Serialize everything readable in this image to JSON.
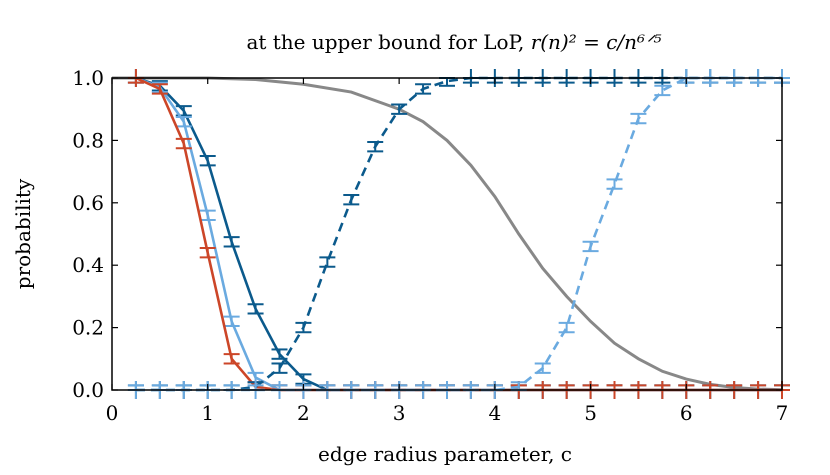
{
  "chart_data": {
    "type": "line",
    "title_prefix": "at the upper bound for LoP, ",
    "title_math": "r(n)² = c/n⁶ᐟ⁵",
    "xlabel": "edge radius parameter, c",
    "ylabel": "probability",
    "xlim": [
      0,
      7
    ],
    "ylim": [
      0,
      1
    ],
    "xticks": [
      "0",
      "1",
      "2",
      "3",
      "4",
      "5",
      "6",
      "7"
    ],
    "yticks": [
      "0.0",
      "0.2",
      "0.4",
      "0.6",
      "0.8",
      "1.0"
    ],
    "grid": false,
    "legend": "none",
    "x": [
      0.25,
      0.5,
      0.75,
      1.0,
      1.25,
      1.5,
      1.75,
      2.0,
      2.25,
      2.5,
      2.75,
      3.0,
      3.25,
      3.5,
      3.75,
      4.0,
      4.25,
      4.5,
      4.75,
      5.0,
      5.25,
      5.5,
      5.75,
      6.0,
      6.25,
      6.5,
      6.75,
      7.0
    ],
    "series": [
      {
        "color": "#888888",
        "style": "solid",
        "errorbars": false,
        "kind": "curve",
        "x": [
          0,
          0.5,
          1.0,
          1.5,
          2.0,
          2.5,
          3.0,
          3.25,
          3.5,
          3.75,
          4.0,
          4.25,
          4.5,
          4.75,
          5.0,
          5.25,
          5.5,
          5.75,
          6.0,
          6.25,
          6.5,
          6.75,
          7.0
        ],
        "values": [
          1.0,
          1.0,
          1.0,
          0.995,
          0.98,
          0.955,
          0.9,
          0.86,
          0.8,
          0.72,
          0.62,
          0.5,
          0.39,
          0.3,
          0.22,
          0.15,
          0.1,
          0.06,
          0.035,
          0.018,
          0.008,
          0.003,
          0.001
        ]
      },
      {
        "color": "#0b5a8c",
        "style": "solid",
        "errorbars": true,
        "values": [
          1.0,
          0.975,
          0.895,
          0.735,
          0.475,
          0.26,
          0.115,
          0.035,
          0.0,
          0.0,
          0.0,
          0.0,
          0.0,
          0.0,
          0.0,
          0.0,
          0.0,
          0.0,
          0.0,
          0.0,
          0.0,
          0.0,
          0.0,
          0.0,
          0.0,
          0.0,
          0.0,
          0.0
        ]
      },
      {
        "color": "#6aaae0",
        "style": "solid",
        "errorbars": true,
        "values": [
          1.0,
          0.97,
          0.86,
          0.56,
          0.22,
          0.04,
          0.0,
          0.0,
          0.0,
          0.0,
          0.0,
          0.0,
          0.0,
          0.0,
          0.0,
          0.0,
          0.0,
          0.0,
          0.0,
          0.0,
          0.0,
          0.0,
          0.0,
          0.0,
          0.0,
          0.0,
          0.0,
          0.0
        ]
      },
      {
        "color": "#cc4628",
        "style": "solid",
        "errorbars": true,
        "values": [
          1.0,
          0.965,
          0.79,
          0.44,
          0.1,
          0.01,
          0.0,
          0.0,
          0.0,
          0.0,
          0.0,
          0.0,
          0.0,
          0.0,
          0.0,
          0.0,
          0.0,
          0.0,
          0.0,
          0.0,
          0.0,
          0.0,
          0.0,
          0.0,
          0.0,
          0.0,
          0.0,
          0.0
        ]
      },
      {
        "color": "#0b5a8c",
        "style": "dashed",
        "errorbars": true,
        "values": [
          0.0,
          0.0,
          0.0,
          0.0,
          0.0,
          0.01,
          0.07,
          0.2,
          0.41,
          0.61,
          0.78,
          0.9,
          0.965,
          0.99,
          1.0,
          1.0,
          1.0,
          1.0,
          1.0,
          1.0,
          1.0,
          1.0,
          1.0,
          1.0,
          1.0,
          1.0,
          1.0,
          1.0
        ]
      },
      {
        "color": "#6aaae0",
        "style": "dashed",
        "errorbars": true,
        "values": [
          0.0,
          0.0,
          0.0,
          0.0,
          0.0,
          0.0,
          0.0,
          0.0,
          0.0,
          0.0,
          0.0,
          0.0,
          0.0,
          0.0,
          0.0,
          0.0,
          0.01,
          0.07,
          0.2,
          0.46,
          0.66,
          0.87,
          0.96,
          1.0,
          1.0,
          1.0,
          1.0,
          1.0
        ]
      }
    ]
  }
}
